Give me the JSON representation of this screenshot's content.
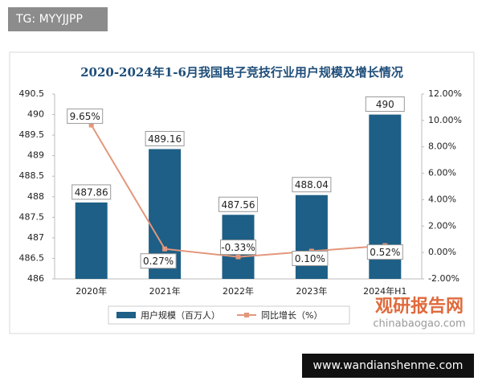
{
  "tag": "TG: MYYJJPP",
  "site": "www.wandianshenme.com",
  "logo": {
    "name": "观研报告网",
    "url": "chinabaogao.com"
  },
  "chart_data": {
    "type": "bar",
    "title": "2020-2024年1-6月我国电子竞技行业用户规模及增长情况",
    "categories": [
      "2020年",
      "2021年",
      "2022年",
      "2023年",
      "2024年H1"
    ],
    "series": [
      {
        "name": "用户规模（百万人）",
        "type": "bar",
        "color": "#1d5f86",
        "values": [
          487.86,
          489.16,
          487.56,
          488.04,
          490
        ]
      },
      {
        "name": "同比增长（%）",
        "type": "line",
        "axis": "y2",
        "color": "#e3977b",
        "values": [
          9.65,
          0.27,
          -0.33,
          0.1,
          0.52
        ],
        "value_labels": [
          "9.65%",
          "0.27%",
          "-0.33%",
          "0.10%",
          "0.52%"
        ]
      }
    ],
    "ylim": [
      486,
      490.5
    ],
    "yticks": [
      486,
      486.5,
      487,
      487.5,
      488,
      488.5,
      489,
      489.5,
      490,
      490.5
    ],
    "y2lim": [
      -2,
      12
    ],
    "y2ticks": [
      {
        "value": -2,
        "label": "-2.00%"
      },
      {
        "value": 0,
        "label": "0.00%"
      },
      {
        "value": 2,
        "label": "2.00%"
      },
      {
        "value": 4,
        "label": "4.00%"
      },
      {
        "value": 6,
        "label": "6.00%"
      },
      {
        "value": 8,
        "label": "8.00%"
      },
      {
        "value": 10,
        "label": "10.00%"
      },
      {
        "value": 12,
        "label": "12.00%"
      }
    ],
    "legend": "bottom"
  }
}
